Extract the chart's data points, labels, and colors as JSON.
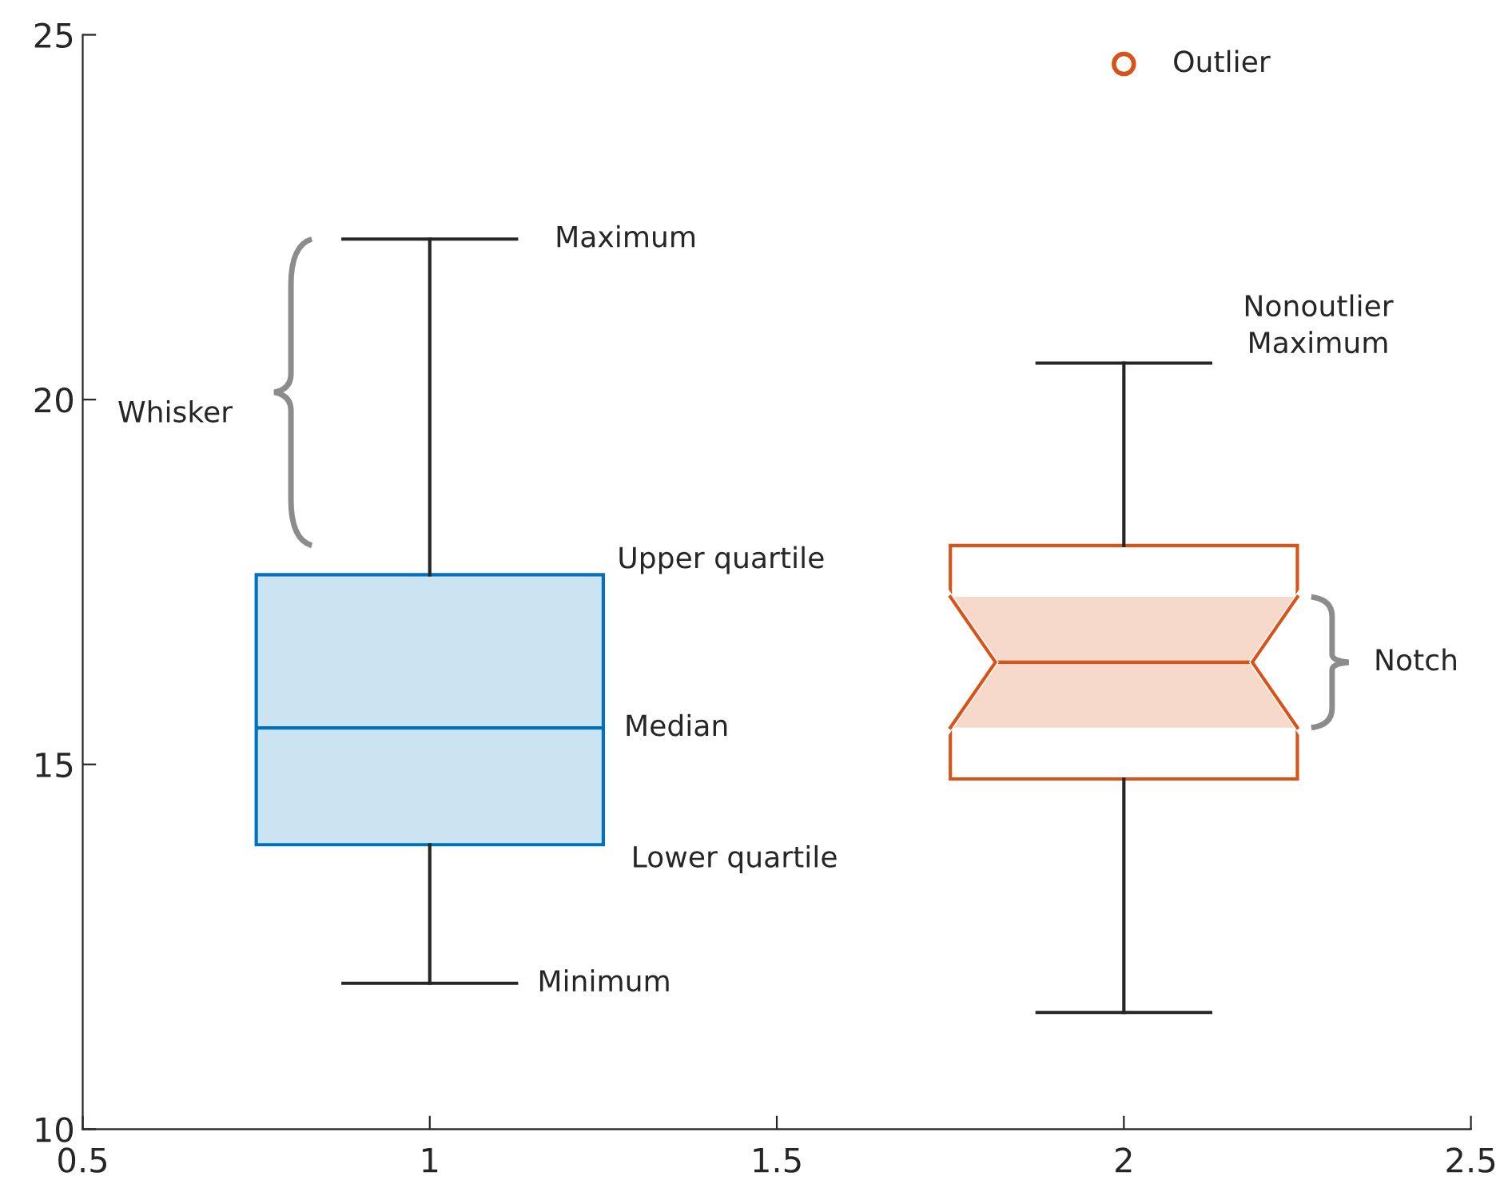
{
  "chart_data": {
    "type": "box",
    "categories": [
      "0.5",
      "1",
      "1.5",
      "2",
      "2.5"
    ],
    "boxes": [
      null,
      {
        "low": 12.0,
        "q1": 13.9,
        "median": 15.5,
        "q3": 17.6,
        "high": 22.2
      },
      null,
      {
        "low": 11.6,
        "q1": 14.8,
        "median": 16.4,
        "q3": 18.0,
        "high": 20.5,
        "outliers": [
          24.6
        ]
      },
      null
    ],
    "colors": [
      null,
      "#0072bd",
      null,
      "#d95319",
      null
    ],
    "ylim": [
      10,
      25
    ],
    "yticks": [
      10,
      15,
      20,
      25
    ],
    "grid": false,
    "legend": false,
    "annotations": [
      "Maximum",
      "Upper quartile",
      "Median",
      "Lower quartile",
      "Minimum",
      "Whisker",
      "Nonoutlier\nMaximum",
      "Notch",
      "Outlier"
    ]
  }
}
